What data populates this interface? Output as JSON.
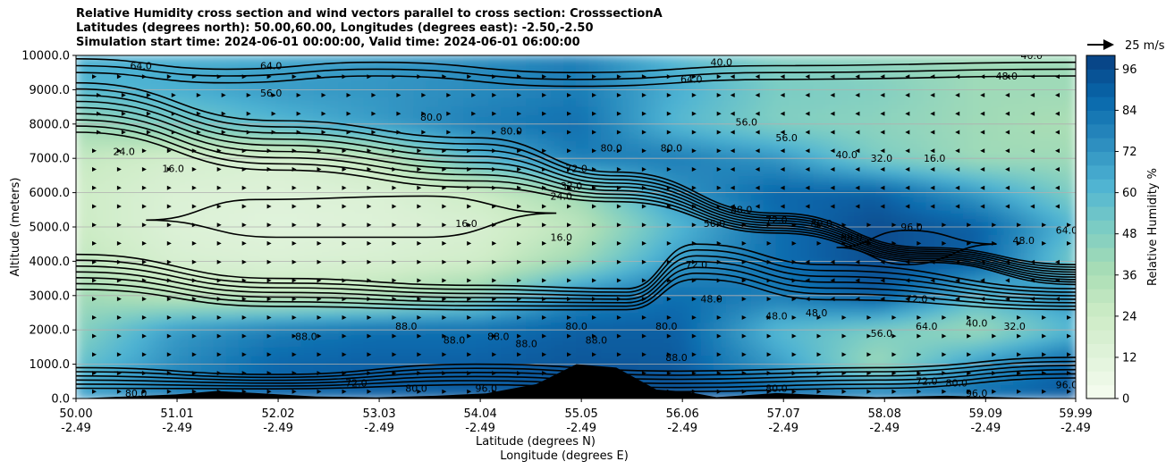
{
  "chart_data": {
    "type": "heatmap",
    "title_lines": [
      "Relative Humidity cross section and wind vectors parallel to cross section: CrosssectionA",
      "Latitudes (degrees north): 50.00,60.00, Longitudes (degrees east): -2.50,-2.50",
      "Simulation start time: 2024-06-01 00:00:00, Valid time: 2024-06-01 06:00:00"
    ],
    "ylabel": "Altitude (meters)",
    "xlabel_lat": "Latitude (degrees N)",
    "xlabel_lon": "Longitude (degrees E)",
    "ylim": [
      0,
      10000
    ],
    "xlim": [
      50.0,
      59.99
    ],
    "y_ticks": [
      "0.0",
      "1000.0",
      "2000.0",
      "3000.0",
      "4000.0",
      "5000.0",
      "6000.0",
      "7000.0",
      "8000.0",
      "9000.0",
      "10000.0"
    ],
    "y_tick_values": [
      0,
      1000,
      2000,
      3000,
      4000,
      5000,
      6000,
      7000,
      8000,
      9000,
      10000
    ],
    "x_ticks": [
      {
        "lat": "50.00",
        "lon": "-2.49",
        "value": 50.0
      },
      {
        "lat": "51.01",
        "lon": "-2.49",
        "value": 51.01
      },
      {
        "lat": "52.02",
        "lon": "-2.49",
        "value": 52.02
      },
      {
        "lat": "53.03",
        "lon": "-2.49",
        "value": 53.03
      },
      {
        "lat": "54.04",
        "lon": "-2.49",
        "value": 54.04
      },
      {
        "lat": "55.05",
        "lon": "-2.49",
        "value": 55.05
      },
      {
        "lat": "56.06",
        "lon": "-2.49",
        "value": 56.06
      },
      {
        "lat": "57.07",
        "lon": "-2.49",
        "value": 57.07
      },
      {
        "lat": "58.08",
        "lon": "-2.49",
        "value": 58.08
      },
      {
        "lat": "59.09",
        "lon": "-2.49",
        "value": 59.09
      },
      {
        "lat": "59.99",
        "lon": "-2.49",
        "value": 59.99
      }
    ],
    "grid": true,
    "colorbar": {
      "label": "Relative Humidity %",
      "ticks": [
        "0",
        "12",
        "24",
        "36",
        "48",
        "60",
        "72",
        "84",
        "96"
      ],
      "tick_values": [
        0,
        12,
        24,
        36,
        48,
        60,
        72,
        84,
        96
      ],
      "min": 0,
      "max": 100,
      "colors": [
        "#f7fcf0",
        "#e0f3db",
        "#ccebc5",
        "#a8ddb5",
        "#7bccc4",
        "#4eb3d3",
        "#2b8cbe",
        "#0868ac",
        "#084081"
      ]
    },
    "wind_key": {
      "label": "25 m/s",
      "value": 25
    },
    "rh_field": {
      "lat": [
        50.0,
        51.0,
        52.0,
        53.0,
        54.0,
        55.0,
        56.0,
        57.0,
        58.0,
        59.0,
        59.99
      ],
      "alt": [
        0,
        1000,
        2000,
        3000,
        4000,
        5000,
        6000,
        7000,
        8000,
        9000,
        10000
      ],
      "rows": [
        [
          70,
          82,
          88,
          90,
          92,
          94,
          95,
          90,
          85,
          88,
          92
        ],
        [
          55,
          75,
          88,
          90,
          90,
          93,
          92,
          70,
          40,
          70,
          90
        ],
        [
          45,
          70,
          80,
          85,
          85,
          90,
          90,
          60,
          50,
          40,
          60
        ],
        [
          40,
          30,
          28,
          32,
          45,
          75,
          85,
          80,
          92,
          60,
          75
        ],
        [
          30,
          18,
          16,
          18,
          22,
          40,
          70,
          85,
          96,
          90,
          50
        ],
        [
          25,
          15,
          12,
          14,
          18,
          30,
          60,
          85,
          96,
          90,
          60
        ],
        [
          24,
          16,
          14,
          16,
          24,
          40,
          72,
          88,
          90,
          70,
          48
        ],
        [
          28,
          20,
          18,
          28,
          60,
          80,
          80,
          72,
          50,
          40,
          40
        ],
        [
          40,
          50,
          60,
          70,
          80,
          85,
          60,
          48,
          45,
          40,
          36
        ],
        [
          60,
          64,
          70,
          72,
          75,
          80,
          64,
          50,
          48,
          40,
          40
        ],
        [
          64,
          64,
          66,
          70,
          75,
          80,
          60,
          48,
          44,
          40,
          40
        ]
      ]
    },
    "contour_labels": [
      {
        "text": "64.0",
        "lat": 50.65,
        "alt": 9600
      },
      {
        "text": "24.0",
        "lat": 50.48,
        "alt": 7100
      },
      {
        "text": "16.0",
        "lat": 50.97,
        "alt": 6600
      },
      {
        "text": "64.0",
        "lat": 51.95,
        "alt": 9600
      },
      {
        "text": "56.0",
        "lat": 51.95,
        "alt": 8800
      },
      {
        "text": "80.0",
        "lat": 53.55,
        "alt": 8100
      },
      {
        "text": "16.0",
        "lat": 53.9,
        "alt": 5000
      },
      {
        "text": "16.0",
        "lat": 54.85,
        "alt": 4600
      },
      {
        "text": "24.0",
        "lat": 54.85,
        "alt": 5800
      },
      {
        "text": "32.0",
        "lat": 54.95,
        "alt": 6100
      },
      {
        "text": "72.0",
        "lat": 55.0,
        "alt": 6600
      },
      {
        "text": "80.0",
        "lat": 55.35,
        "alt": 7200
      },
      {
        "text": "80.0",
        "lat": 55.95,
        "alt": 7200
      },
      {
        "text": "80.0",
        "lat": 54.35,
        "alt": 7700
      },
      {
        "text": "64.0",
        "lat": 56.15,
        "alt": 9200
      },
      {
        "text": "40.0",
        "lat": 56.45,
        "alt": 9700
      },
      {
        "text": "56.0",
        "lat": 56.7,
        "alt": 7950
      },
      {
        "text": "56.0",
        "lat": 57.1,
        "alt": 7500
      },
      {
        "text": "40.0",
        "lat": 57.7,
        "alt": 7000
      },
      {
        "text": "32.0",
        "lat": 58.05,
        "alt": 6900
      },
      {
        "text": "16.0",
        "lat": 58.58,
        "alt": 6900
      },
      {
        "text": "48.0",
        "lat": 59.3,
        "alt": 9300
      },
      {
        "text": "40.0",
        "lat": 59.55,
        "alt": 9900
      },
      {
        "text": "88.0",
        "lat": 56.65,
        "alt": 5400
      },
      {
        "text": "72.0",
        "lat": 57.0,
        "alt": 5100
      },
      {
        "text": "80.0",
        "lat": 57.45,
        "alt": 5000
      },
      {
        "text": "88.0",
        "lat": 57.75,
        "alt": 4600
      },
      {
        "text": "96.0",
        "lat": 58.35,
        "alt": 4900
      },
      {
        "text": "48.0",
        "lat": 59.47,
        "alt": 4500
      },
      {
        "text": "64.0",
        "lat": 59.9,
        "alt": 4800
      },
      {
        "text": "56.0",
        "lat": 56.38,
        "alt": 5000
      },
      {
        "text": "72.0",
        "lat": 56.2,
        "alt": 3800
      },
      {
        "text": "48.0",
        "lat": 56.35,
        "alt": 2800
      },
      {
        "text": "48.0",
        "lat": 57.0,
        "alt": 2300
      },
      {
        "text": "48.0",
        "lat": 57.4,
        "alt": 2400
      },
      {
        "text": "72.0",
        "lat": 58.4,
        "alt": 2800
      },
      {
        "text": "64.0",
        "lat": 58.5,
        "alt": 2000
      },
      {
        "text": "56.0",
        "lat": 58.05,
        "alt": 1800
      },
      {
        "text": "40.0",
        "lat": 59.0,
        "alt": 2100
      },
      {
        "text": "32.0",
        "lat": 59.38,
        "alt": 2000
      },
      {
        "text": "88.0",
        "lat": 52.3,
        "alt": 1700
      },
      {
        "text": "88.0",
        "lat": 53.3,
        "alt": 2000
      },
      {
        "text": "88.0",
        "lat": 53.78,
        "alt": 1600
      },
      {
        "text": "88.0",
        "lat": 54.22,
        "alt": 1700
      },
      {
        "text": "88.0",
        "lat": 54.5,
        "alt": 1500
      },
      {
        "text": "80.0",
        "lat": 55.0,
        "alt": 2000
      },
      {
        "text": "88.0",
        "lat": 55.2,
        "alt": 1600
      },
      {
        "text": "88.0",
        "lat": 56.0,
        "alt": 1100
      },
      {
        "text": "80.0",
        "lat": 55.9,
        "alt": 2000
      },
      {
        "text": "80.0",
        "lat": 57.0,
        "alt": 200
      },
      {
        "text": "72.0",
        "lat": 58.5,
        "alt": 400
      },
      {
        "text": "80.0",
        "lat": 58.8,
        "alt": 350
      },
      {
        "text": "96.0",
        "lat": 59.0,
        "alt": 50
      },
      {
        "text": "72.0",
        "lat": 52.8,
        "alt": 350
      },
      {
        "text": "80.0",
        "lat": 53.4,
        "alt": 200
      },
      {
        "text": "96.0",
        "lat": 54.1,
        "alt": 200
      },
      {
        "text": "80.0",
        "lat": 50.6,
        "alt": 50
      },
      {
        "text": "96.0",
        "lat": 59.9,
        "alt": 300
      }
    ]
  }
}
